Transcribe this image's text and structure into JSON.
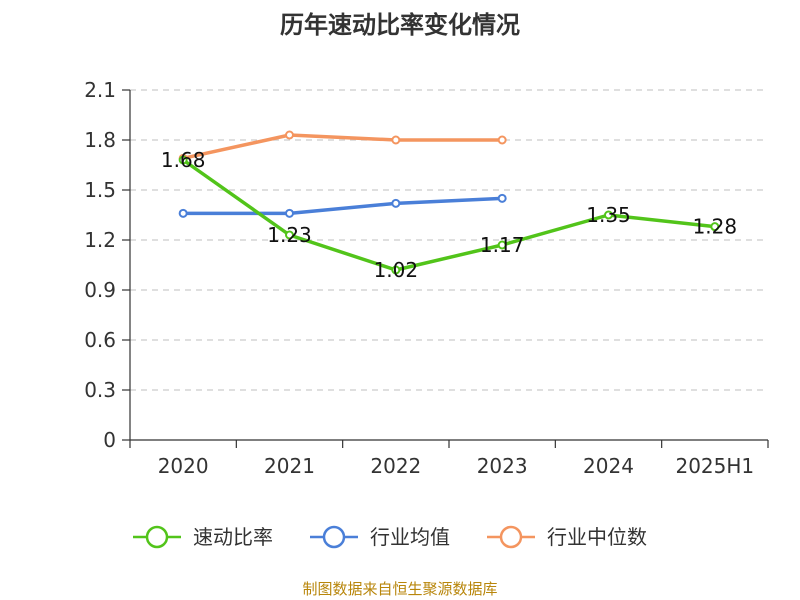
{
  "chart_data": {
    "type": "line",
    "title": "历年速动比率变化情况",
    "xlabel": "",
    "ylabel": "",
    "categories": [
      "2020",
      "2021",
      "2022",
      "2023",
      "2024",
      "2025H1"
    ],
    "ylim": [
      0,
      2.1
    ],
    "yticks": [
      "0",
      "0.3",
      "0.6",
      "0.9",
      "1.2",
      "1.5",
      "1.8",
      "2.1"
    ],
    "grid": true,
    "legend_position": "bottom",
    "series": [
      {
        "name": "速动比率",
        "color": "#52c41a",
        "values": [
          1.68,
          1.23,
          1.02,
          1.17,
          1.35,
          1.28
        ],
        "labels": [
          "1.68",
          "1.23",
          "1.02",
          "1.17",
          "1.35",
          "1.28"
        ]
      },
      {
        "name": "行业均值",
        "color": "#4a7fd8",
        "values": [
          1.36,
          1.36,
          1.42,
          1.45,
          null,
          null
        ]
      },
      {
        "name": "行业中位数",
        "color": "#f4955f",
        "values": [
          1.69,
          1.83,
          1.8,
          1.8,
          null,
          null
        ]
      }
    ]
  },
  "source": "制图数据来自恒生聚源数据库"
}
